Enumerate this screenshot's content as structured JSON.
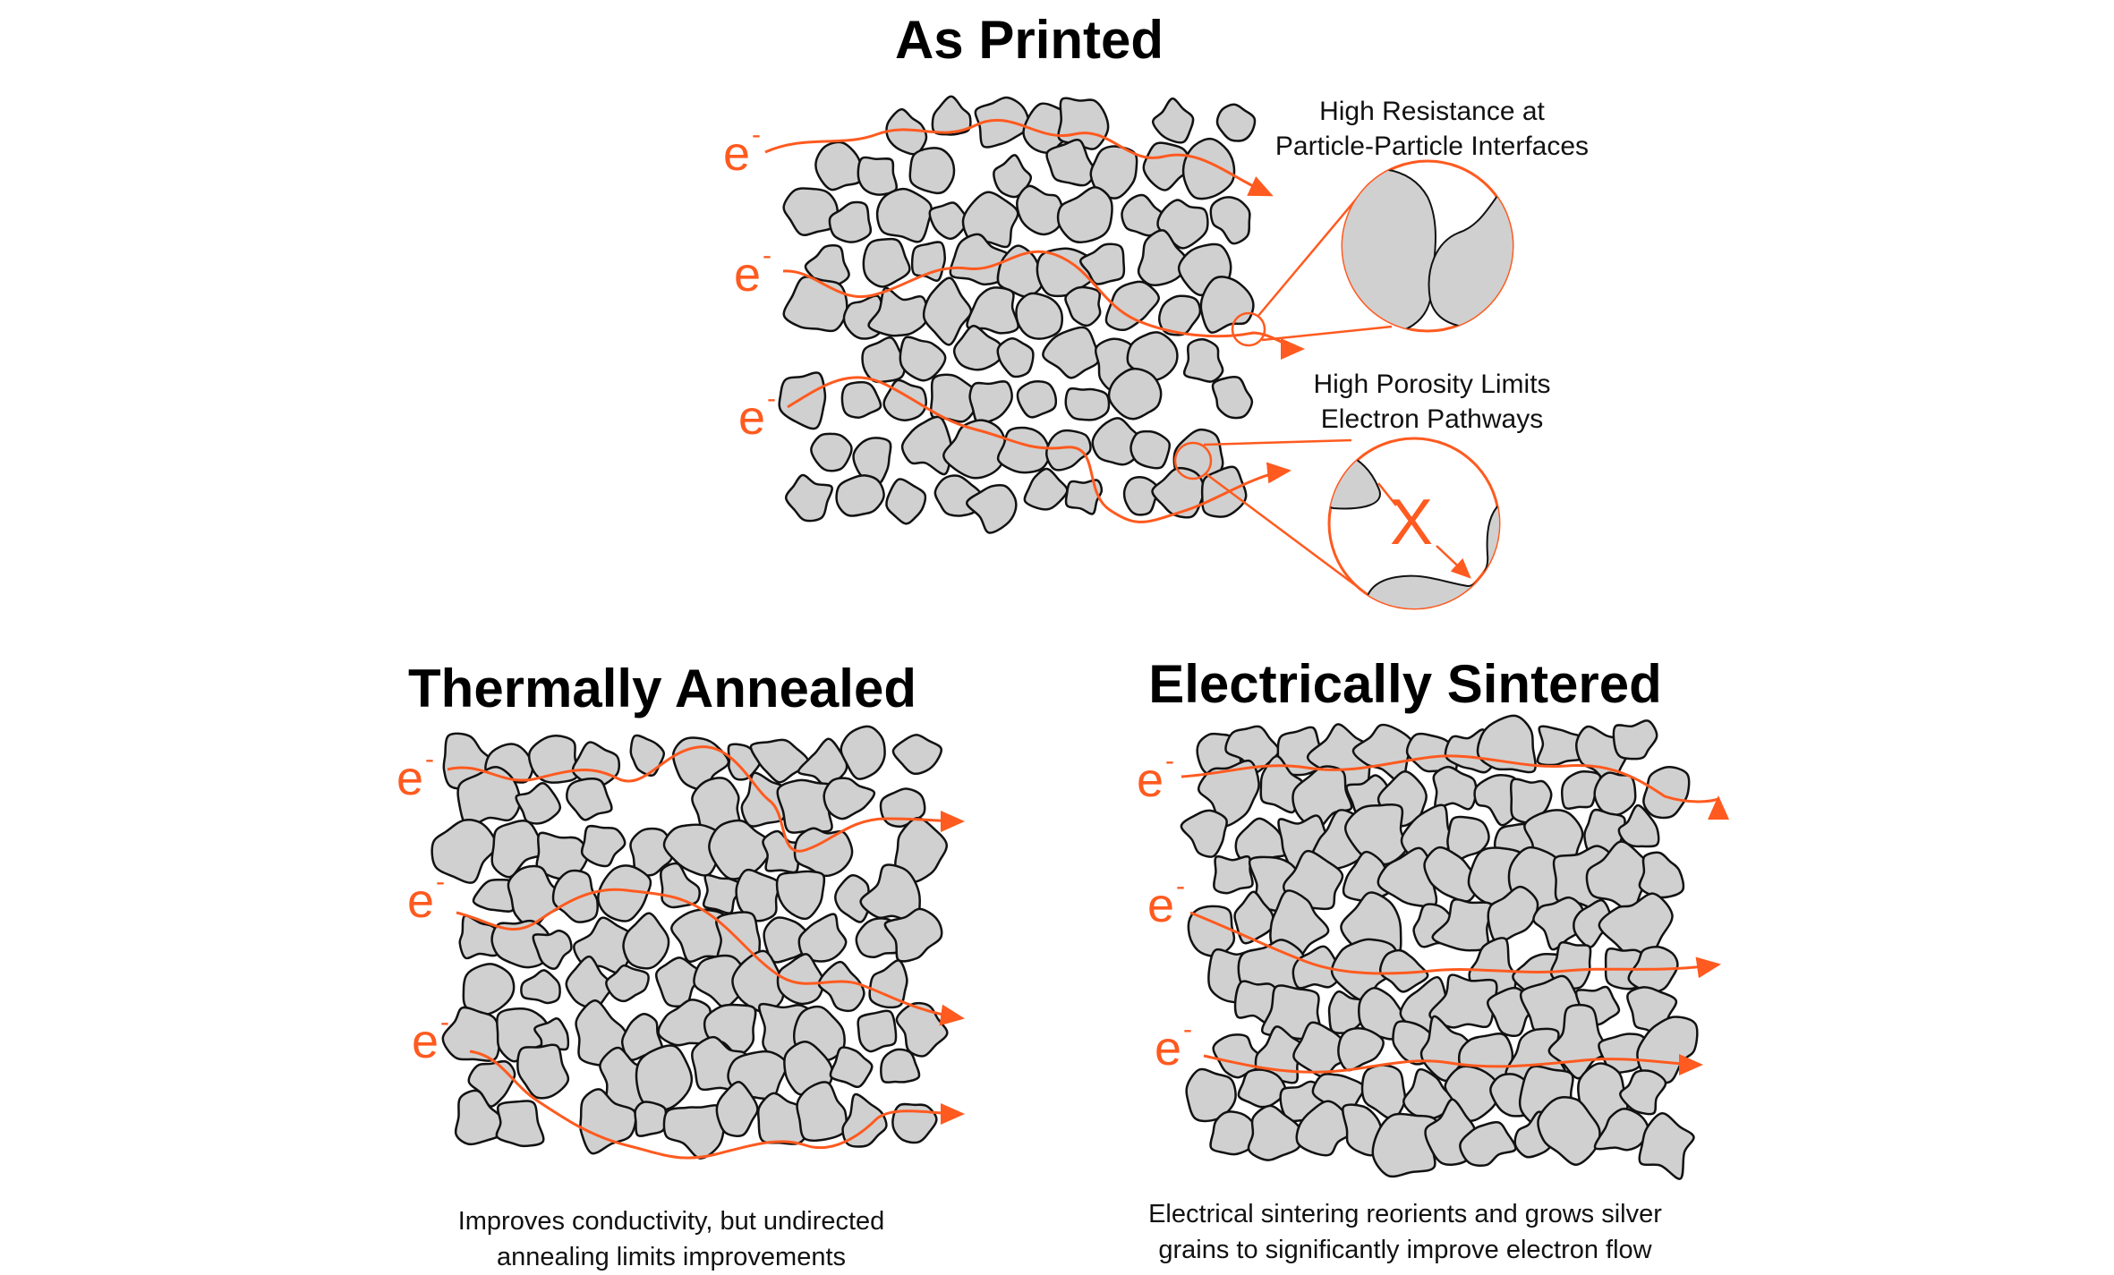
{
  "panels": {
    "top": {
      "title": "As Printed"
    },
    "bottom_left": {
      "title": "Thermally Annealed",
      "caption_line1": "Improves conductivity, but undirected",
      "caption_line2": "annealing limits improvements"
    },
    "bottom_right": {
      "title": "Electrically Sintered",
      "caption_line1": "Electrical sintering reorients and grows silver",
      "caption_line2": "grains to significantly improve electron flow"
    }
  },
  "insets": {
    "resistance": {
      "line1": "High Resistance at",
      "line2": "Particle-Particle Interfaces"
    },
    "porosity": {
      "line1": "High Porosity Limits",
      "line2": "Electron Pathways",
      "blocked_mark": "X"
    }
  },
  "electron": {
    "symbol": "e",
    "superscript": "-"
  },
  "colors": {
    "accent": "#ff5a1f",
    "particle_fill": "#d0d0d0",
    "particle_stroke": "#111111",
    "text": "#000000"
  }
}
